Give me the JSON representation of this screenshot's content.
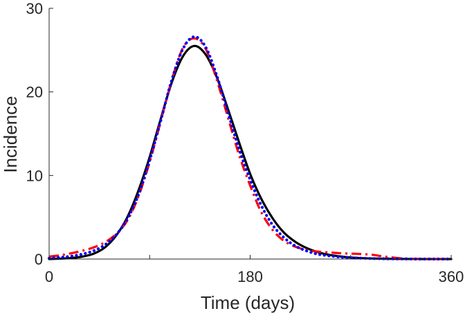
{
  "chart_data": {
    "type": "line",
    "title": "",
    "xlabel": "Time (days)",
    "ylabel": "Incidence",
    "xlim": [
      0,
      360
    ],
    "ylim": [
      0,
      30
    ],
    "xticks": [
      0,
      90,
      180,
      270,
      360
    ],
    "xtick_labels": [
      "0",
      "",
      "180",
      "",
      "360"
    ],
    "yticks": [
      0,
      10,
      20,
      30
    ],
    "ytick_labels": [
      "0",
      "10",
      "20",
      "30"
    ],
    "grid": false,
    "legend": "none",
    "series": [
      {
        "style": "solid",
        "color": "#000000",
        "x": [
          0,
          10,
          20,
          30,
          40,
          50,
          60,
          70,
          80,
          90,
          100,
          110,
          120,
          130,
          140,
          150,
          160,
          170,
          180,
          190,
          200,
          210,
          220,
          230,
          240,
          250,
          260,
          270,
          280,
          290,
          300,
          310,
          320,
          330,
          340,
          350,
          360
        ],
        "y": [
          0.0,
          0.05,
          0.12,
          0.3,
          0.65,
          1.4,
          2.8,
          5.0,
          8.2,
          12.2,
          16.8,
          21.2,
          24.3,
          25.5,
          24.5,
          21.8,
          18.0,
          14.0,
          10.2,
          7.2,
          4.9,
          3.2,
          2.1,
          1.35,
          0.85,
          0.52,
          0.32,
          0.19,
          0.11,
          0.06,
          0.03,
          0.02,
          0.01,
          0.0,
          0.0,
          0.0,
          0.0
        ]
      },
      {
        "style": "dashdot",
        "color": "#ff0000",
        "x": [
          0,
          10,
          20,
          30,
          40,
          50,
          60,
          70,
          80,
          90,
          100,
          110,
          120,
          130,
          140,
          150,
          160,
          170,
          180,
          190,
          200,
          210,
          220,
          230,
          240,
          250,
          260,
          270,
          280,
          290,
          300,
          310,
          320,
          330,
          340,
          350,
          360
        ],
        "y": [
          0.3,
          0.45,
          0.7,
          1.0,
          1.4,
          2.0,
          3.0,
          4.6,
          7.5,
          11.6,
          16.5,
          21.5,
          25.3,
          26.4,
          25.2,
          21.5,
          17.0,
          12.5,
          8.8,
          5.6,
          3.5,
          2.2,
          1.5,
          1.1,
          0.9,
          0.8,
          0.7,
          0.65,
          0.6,
          0.5,
          0.3,
          0.15,
          0.05,
          0.02,
          0.0,
          0.0,
          0.0
        ]
      },
      {
        "style": "dotted",
        "color": "#0000ff",
        "x": [
          0,
          10,
          20,
          30,
          40,
          50,
          60,
          70,
          80,
          90,
          100,
          110,
          120,
          130,
          140,
          150,
          160,
          170,
          180,
          190,
          200,
          210,
          220,
          230,
          240,
          250,
          260,
          270,
          280,
          290,
          300,
          310,
          320,
          330,
          340,
          350,
          360
        ],
        "y": [
          0.1,
          0.2,
          0.35,
          0.6,
          1.0,
          1.7,
          2.9,
          4.8,
          7.7,
          11.8,
          16.6,
          21.5,
          25.2,
          26.6,
          25.4,
          22.0,
          17.6,
          13.2,
          9.5,
          6.4,
          4.1,
          2.6,
          1.6,
          1.0,
          0.6,
          0.4,
          0.25,
          0.15,
          0.1,
          0.06,
          0.04,
          0.02,
          0.01,
          0.0,
          0.0,
          0.0,
          0.0
        ]
      }
    ]
  }
}
